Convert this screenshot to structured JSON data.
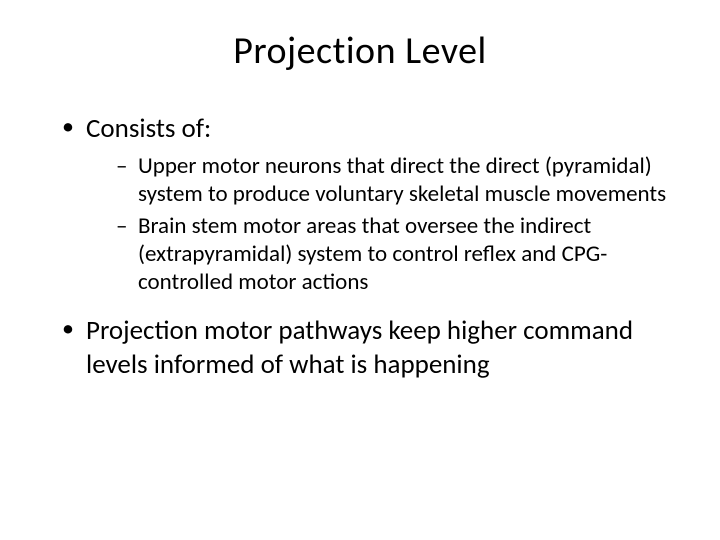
{
  "slide": {
    "title": "Projection Level",
    "bullets": [
      {
        "text": "Consists of:",
        "subitems": [
          "Upper motor neurons that direct the direct (pyramidal) system to produce voluntary skeletal muscle movements",
          "Brain stem motor areas that oversee the indirect (extrapyramidal) system to control reflex and CPG-controlled motor actions"
        ]
      },
      {
        "text": "Projection motor pathways keep higher command levels informed of what is happening",
        "subitems": []
      }
    ]
  },
  "style": {
    "background_color": "#ffffff",
    "text_color": "#000000",
    "title_fontsize": 38,
    "bullet_fontsize": 27,
    "subbullet_fontsize": 23,
    "font_family": "Calibri"
  }
}
